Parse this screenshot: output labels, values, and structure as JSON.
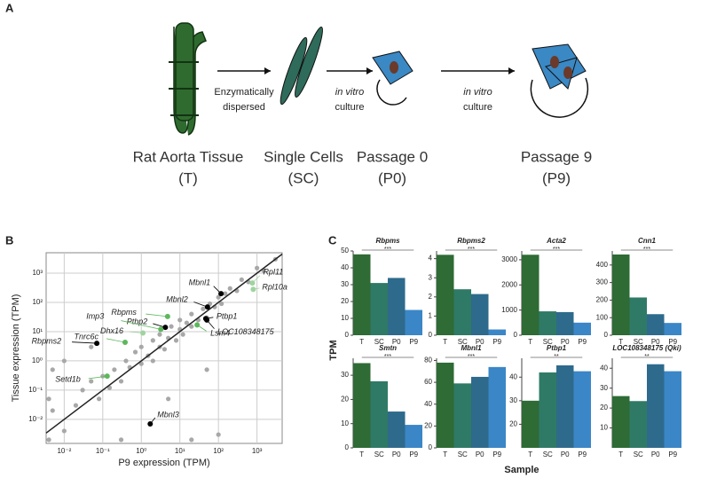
{
  "panel_a": {
    "label": "A",
    "arrows": [
      {
        "lines": [
          "Enzymatically",
          "dispersed"
        ]
      },
      {
        "lines": [
          "in vitro",
          "culture"
        ]
      },
      {
        "lines": [
          "in vitro",
          "culture"
        ]
      }
    ],
    "stages": [
      {
        "name": "Rat Aorta Tissue",
        "code": "(T)"
      },
      {
        "name": "Single Cells",
        "code": "(SC)"
      },
      {
        "name": "Passage 0",
        "code": "(P0)"
      },
      {
        "name": "Passage 9",
        "code": "(P9)"
      }
    ]
  },
  "panel_c": {
    "label": "C",
    "ylabel": "TPM",
    "xlabel": "Sample",
    "colors": [
      "#2e6b35",
      "#2f7a66",
      "#2e6a8c",
      "#3b86c6"
    ]
  },
  "chart_data": [
    {
      "type": "scatter",
      "panel": "B",
      "xlabel": "P9 expression (TPM)",
      "ylabel": "Tissue expression (TPM)",
      "log_x": true,
      "log_y": true,
      "grid": true,
      "xlim": [
        0.0034,
        4500
      ],
      "ylim": [
        0.0015,
        5000
      ],
      "xticks": [
        {
          "value": 0.01,
          "label": "10⁻²"
        },
        {
          "value": 0.1,
          "label": "10⁻¹"
        },
        {
          "value": 1,
          "label": "10⁰"
        },
        {
          "value": 10,
          "label": "10¹"
        },
        {
          "value": 100,
          "label": "10²"
        },
        {
          "value": 1000,
          "label": "10³"
        }
      ],
      "yticks": [
        {
          "value": 0.01,
          "label": "10⁻²"
        },
        {
          "value": 0.1,
          "label": "10⁻¹"
        },
        {
          "value": 1,
          "label": "10⁰"
        },
        {
          "value": 10,
          "label": "10¹"
        },
        {
          "value": 100,
          "label": "10²"
        },
        {
          "value": 1000,
          "label": "10³"
        }
      ],
      "points": {
        "color": "#a8a8a8",
        "x": [
          0.004,
          0.005,
          0.01,
          0.02,
          0.03,
          0.05,
          0.08,
          0.1,
          0.15,
          0.2,
          0.3,
          0.4,
          0.5,
          0.7,
          1,
          1,
          1.5,
          2,
          2,
          3,
          3,
          4,
          5,
          6,
          8,
          10,
          10,
          12,
          15,
          20,
          20,
          30,
          40,
          50,
          60,
          80,
          100,
          120,
          150,
          200,
          300,
          400,
          600,
          1000,
          1500,
          3000,
          0.01,
          0.05,
          0.3,
          20,
          100,
          0.005,
          0.004,
          5,
          50
        ],
        "y": [
          0.002,
          0.02,
          0.004,
          0.03,
          0.1,
          0.2,
          0.05,
          0.3,
          0.12,
          0.5,
          0.2,
          1,
          0.6,
          2,
          0.8,
          3,
          1.5,
          5,
          1,
          3,
          8,
          2.5,
          6,
          15,
          5,
          12,
          25,
          8,
          20,
          15,
          40,
          25,
          60,
          30,
          90,
          70,
          150,
          90,
          200,
          300,
          250,
          600,
          500,
          1500,
          1200,
          3000,
          1,
          3,
          0.002,
          0.002,
          0.003,
          0.5,
          0.05,
          0.05,
          0.5
        ]
      },
      "genes": [
        {
          "label": "Rbpms2",
          "x": 0.07,
          "y": 4,
          "color": "#000000"
        },
        {
          "label": "Mbnl3",
          "x": 1.7,
          "y": 0.007,
          "color": "#000000"
        },
        {
          "label": "Ptbp1",
          "x": 47,
          "y": 28,
          "color": "#000000"
        },
        {
          "label": "LOC108348175",
          "x": 50,
          "y": 25,
          "color": "#000000"
        },
        {
          "label": "Ptbp2",
          "x": 4.2,
          "y": 14,
          "color": "#000000"
        },
        {
          "label": "Mbnl1",
          "x": 117,
          "y": 200,
          "color": "#000000"
        },
        {
          "label": "Mbnl2",
          "x": 52,
          "y": 70,
          "color": "#000000"
        },
        {
          "label": "Rbpms",
          "x": 4.8,
          "y": 33,
          "color": "#5cb85c"
        },
        {
          "label": "Imp3",
          "x": 3.2,
          "y": 12,
          "color": "#5cb85c"
        },
        {
          "label": "Dhx16",
          "x": 1.1,
          "y": 9,
          "color": "#9fd49f"
        },
        {
          "label": "Tnrc6c",
          "x": 0.38,
          "y": 4.3,
          "color": "#5cb85c"
        },
        {
          "label": "Setd1b",
          "x": 0.13,
          "y": 0.3,
          "color": "#5cb85c"
        },
        {
          "label": "Lsm4",
          "x": 28,
          "y": 17,
          "color": "#5cb85c"
        },
        {
          "label": "Rpl11",
          "x": 760,
          "y": 460,
          "color": "#9fd49f"
        },
        {
          "label": "Rpl10a",
          "x": 800,
          "y": 280,
          "color": "#9fd49f"
        }
      ]
    },
    {
      "type": "bar",
      "title": "Rbpms",
      "categories": [
        "T",
        "SC",
        "P0",
        "P9"
      ],
      "values": [
        48,
        31,
        34,
        15
      ],
      "ylim": [
        0,
        50
      ],
      "yticks": [
        0,
        10,
        20,
        30,
        40,
        50
      ],
      "significance": "***"
    },
    {
      "type": "bar",
      "title": "Rbpms2",
      "categories": [
        "T",
        "SC",
        "P0",
        "P9"
      ],
      "values": [
        4.2,
        2.4,
        2.15,
        0.3
      ],
      "ylim": [
        0,
        4.4
      ],
      "yticks": [
        0,
        1,
        2,
        3,
        4
      ],
      "significance": "***"
    },
    {
      "type": "bar",
      "title": "Acta2",
      "categories": [
        "T",
        "SC",
        "P0",
        "P9"
      ],
      "values": [
        3200,
        950,
        920,
        500
      ],
      "ylim": [
        0,
        3350
      ],
      "yticks": [
        0,
        1000,
        2000,
        3000
      ],
      "significance": "***"
    },
    {
      "type": "bar",
      "title": "Cnn1",
      "categories": [
        "T",
        "SC",
        "P0",
        "P9"
      ],
      "values": [
        460,
        215,
        120,
        70
      ],
      "ylim": [
        0,
        480
      ],
      "yticks": [
        0,
        100,
        200,
        300,
        400
      ],
      "significance": "***"
    },
    {
      "type": "bar",
      "title": "Smtn",
      "categories": [
        "T",
        "SC",
        "P0",
        "P9"
      ],
      "values": [
        35,
        27.5,
        15,
        9.5
      ],
      "ylim": [
        0,
        37
      ],
      "yticks": [
        0,
        10,
        20,
        30
      ],
      "significance": "***"
    },
    {
      "type": "bar",
      "title": "Mbnl1",
      "categories": [
        "T",
        "SC",
        "P0",
        "P9"
      ],
      "values": [
        78,
        59,
        65,
        74
      ],
      "ylim": [
        0,
        82
      ],
      "yticks": [
        0,
        20,
        40,
        60,
        80
      ],
      "significance": "***"
    },
    {
      "type": "bar",
      "title": "Ptbp1",
      "categories": [
        "T",
        "SC",
        "P0",
        "P9"
      ],
      "values": [
        30,
        42,
        45,
        42.5
      ],
      "ylim": [
        10,
        48
      ],
      "yticks": [
        20,
        30,
        40
      ],
      "significance": "**"
    },
    {
      "type": "bar",
      "title": "LOC108348175 (Qki)",
      "categories": [
        "T",
        "SC",
        "P0",
        "P9"
      ],
      "values": [
        26,
        23.5,
        42,
        38.5
      ],
      "ylim": [
        0,
        45
      ],
      "yticks": [
        10,
        20,
        30,
        40
      ],
      "significance": "**"
    }
  ]
}
